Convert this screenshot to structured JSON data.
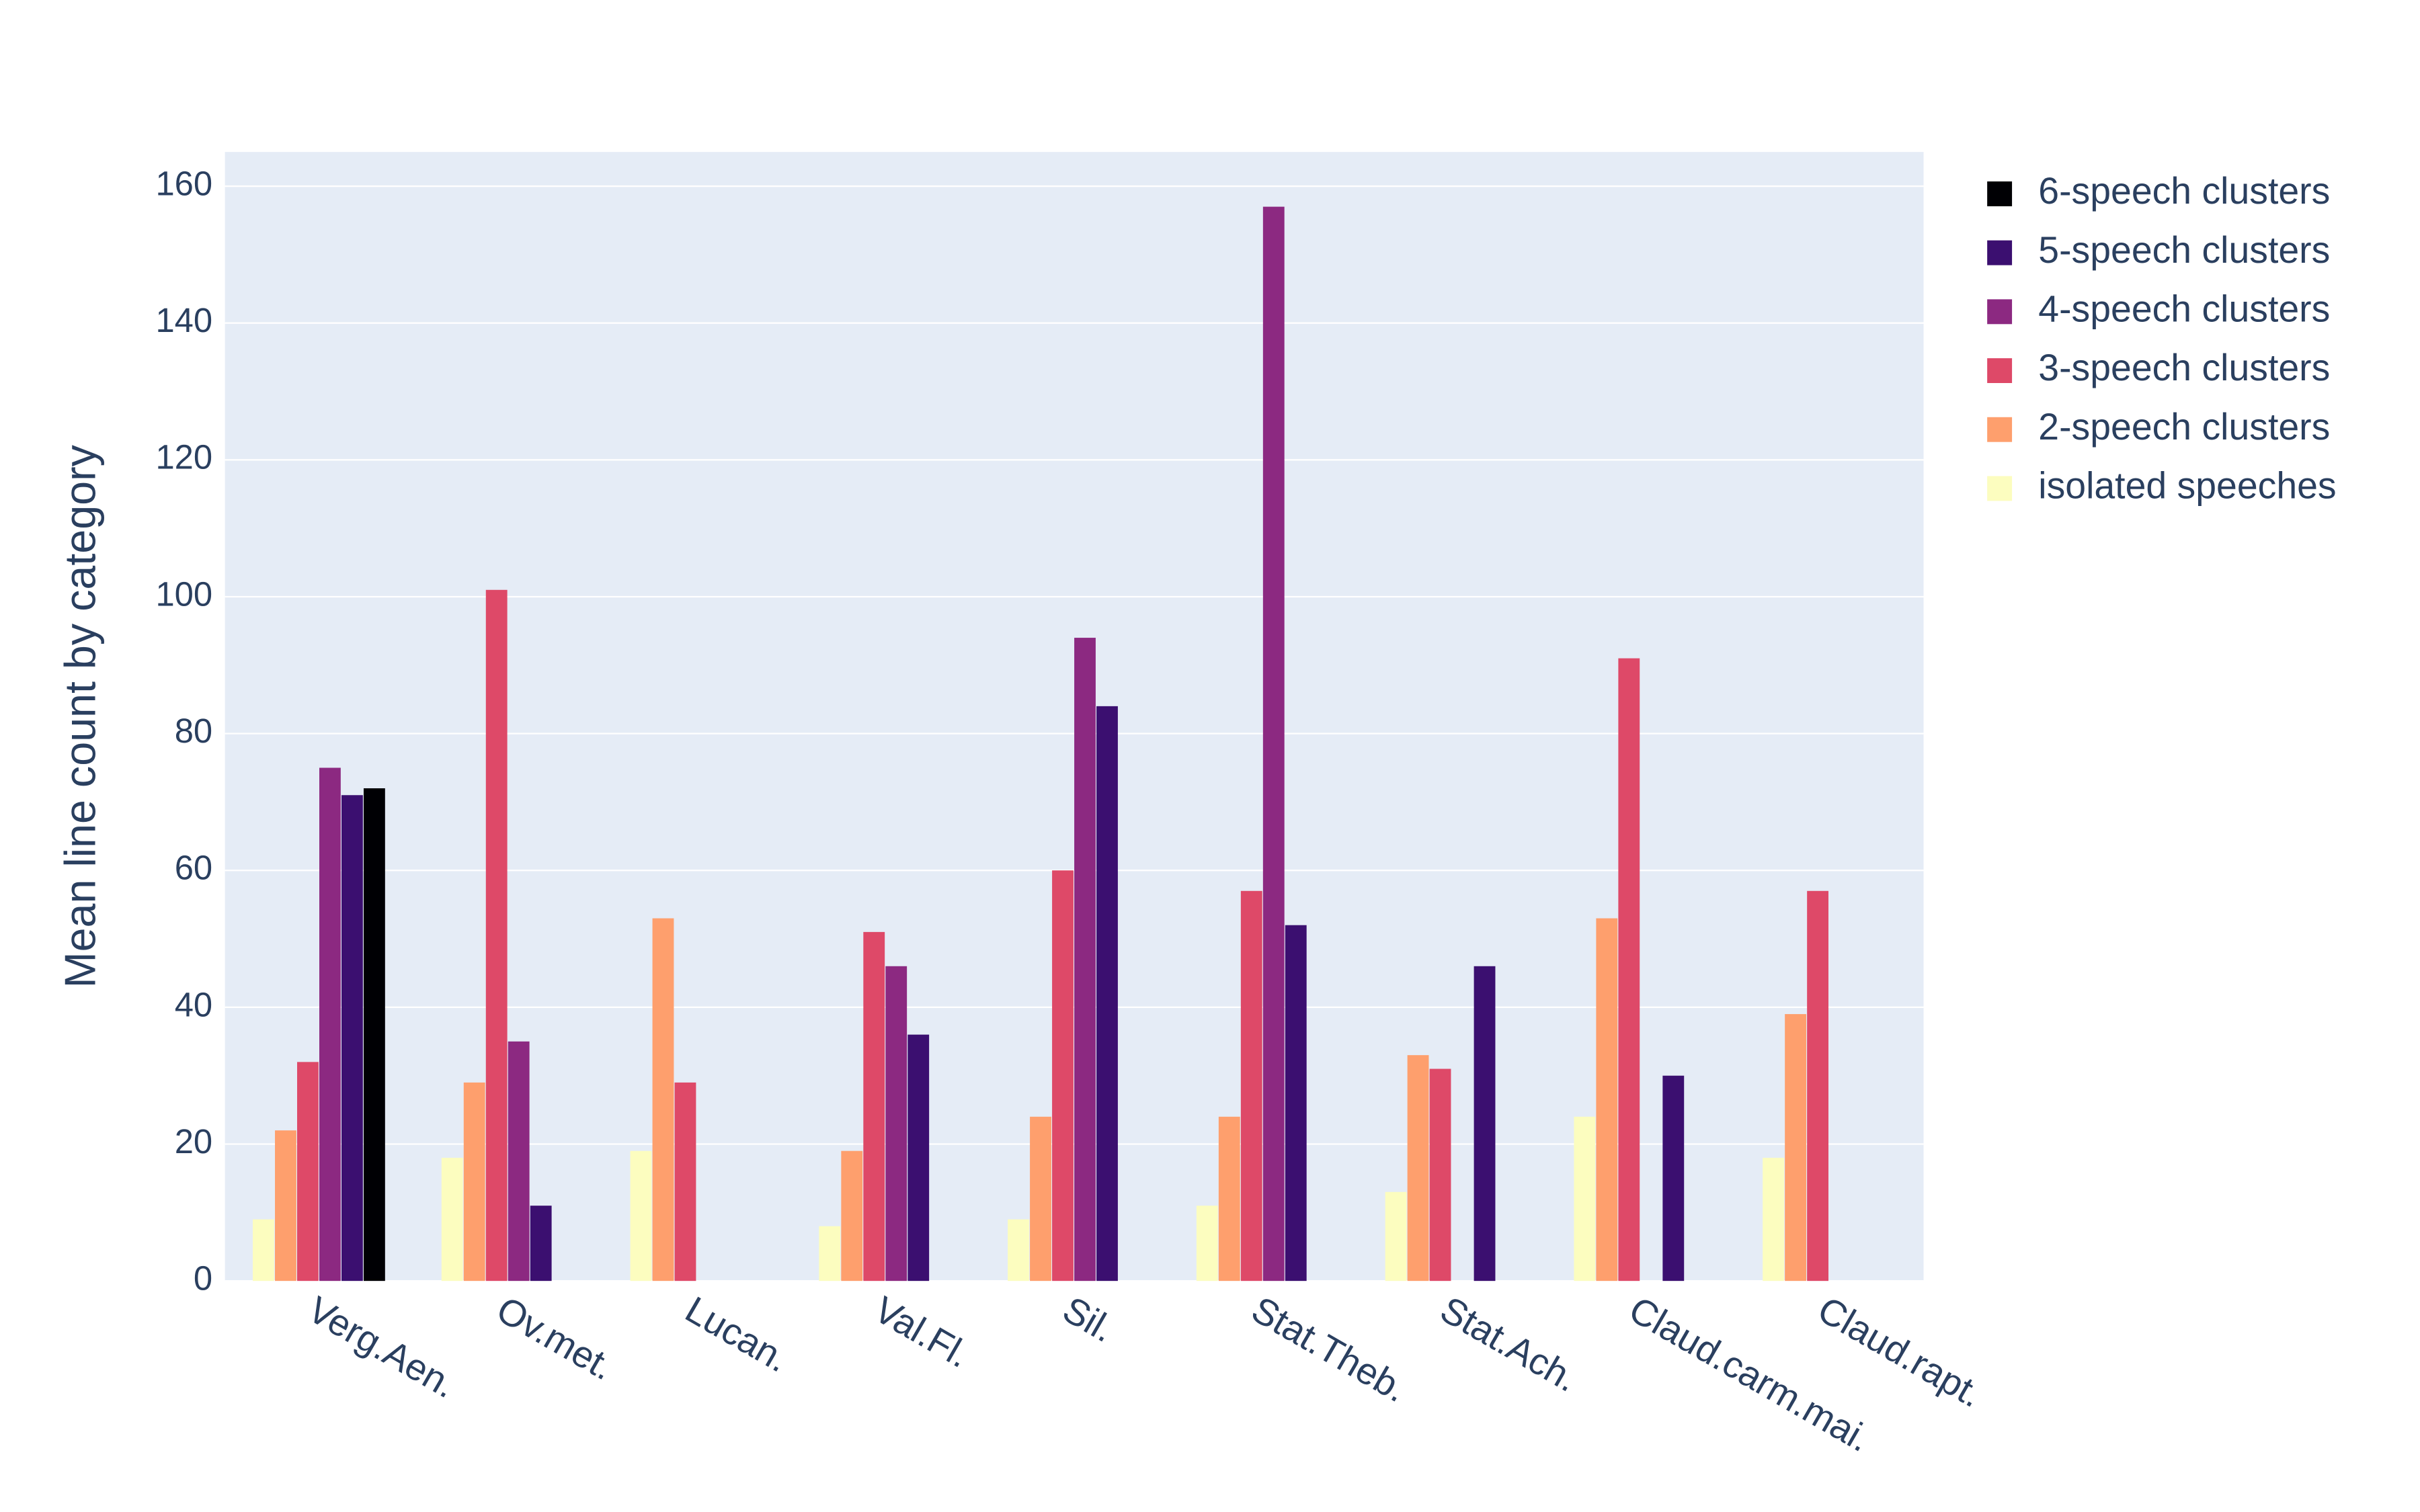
{
  "chart_data": {
    "type": "bar",
    "y_label": "Mean line count by category",
    "categories": [
      "Verg.Aen.",
      "Ov.met.",
      "Lucan.",
      "Val.Fl.",
      "Sil.",
      "Stat.Theb.",
      "Stat.Ach.",
      "Claud.carm.mai.",
      "Claud.rapt."
    ],
    "series": [
      {
        "name": "isolated speeches",
        "color": "#fcfdbf",
        "values": [
          9,
          18,
          19,
          8,
          9,
          11,
          13,
          24,
          18
        ]
      },
      {
        "name": "2-speech clusters",
        "color": "#fe9f6d",
        "values": [
          22,
          29,
          53,
          19,
          24,
          24,
          33,
          53,
          39
        ]
      },
      {
        "name": "3-speech clusters",
        "color": "#de4968",
        "values": [
          32,
          101,
          29,
          51,
          60,
          57,
          31,
          91,
          57
        ]
      },
      {
        "name": "4-speech clusters",
        "color": "#8c2981",
        "values": [
          75,
          35,
          null,
          46,
          94,
          157,
          null,
          null,
          null
        ]
      },
      {
        "name": "5-speech clusters",
        "color": "#3b0f70",
        "values": [
          71,
          11,
          null,
          36,
          84,
          52,
          46,
          30,
          null
        ]
      },
      {
        "name": "6-speech clusters",
        "color": "#000004",
        "values": [
          72,
          null,
          null,
          null,
          null,
          null,
          null,
          null,
          null
        ]
      }
    ],
    "ylim": [
      0,
      165
    ],
    "yticks": [
      0,
      20,
      40,
      60,
      80,
      100,
      120,
      140,
      160
    ],
    "grid": true
  }
}
